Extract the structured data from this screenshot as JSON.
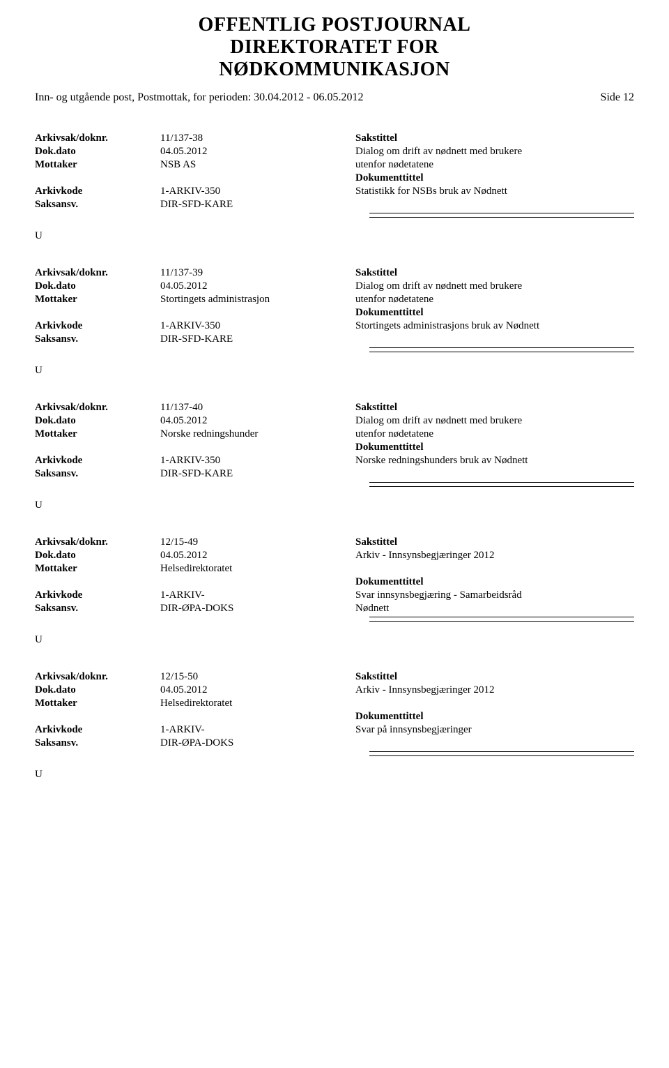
{
  "header": {
    "line1": "OFFENTLIG POSTJOURNAL",
    "line2": "DIREKTORATET FOR",
    "line3": "NØDKOMMUNIKASJON"
  },
  "subheader": {
    "text": "Inn- og utgående post, Postmottak, for perioden: 30.04.2012 - 06.05.2012",
    "page": "Side 12"
  },
  "labels": {
    "arkivsak": "Arkivsak/doknr.",
    "dokdato": "Dok.dato",
    "mottaker": "Mottaker",
    "arkivkode": "Arkivkode",
    "saksansv": "Saksansv.",
    "sakstittel": "Sakstittel",
    "dokumenttittel": "Dokumenttittel"
  },
  "entries": [
    {
      "arkivsak": "11/137-38",
      "dokdato": "04.05.2012",
      "mottaker": "NSB AS",
      "arkivkode": "1-ARKIV-350",
      "saksansv": "DIR-SFD-KARE",
      "sakstittel_lines": [
        "Dialog om drift av nødnett med brukere",
        "utenfor nødetatene"
      ],
      "dokumenttittel_lines": [
        "Statistikk for NSBs bruk av Nødnett"
      ],
      "type": "U"
    },
    {
      "arkivsak": "11/137-39",
      "dokdato": "04.05.2012",
      "mottaker": "Stortingets administrasjon",
      "arkivkode": "1-ARKIV-350",
      "saksansv": "DIR-SFD-KARE",
      "sakstittel_lines": [
        "Dialog om drift av nødnett med brukere",
        "utenfor nødetatene"
      ],
      "dokumenttittel_lines": [
        "Stortingets administrasjons bruk av Nødnett"
      ],
      "type": "U"
    },
    {
      "arkivsak": "11/137-40",
      "dokdato": "04.05.2012",
      "mottaker": "Norske redningshunder",
      "arkivkode": "1-ARKIV-350",
      "saksansv": "DIR-SFD-KARE",
      "sakstittel_lines": [
        "Dialog om drift av nødnett med brukere",
        "utenfor nødetatene"
      ],
      "dokumenttittel_lines": [
        "Norske redningshunders bruk av Nødnett"
      ],
      "type": "U"
    },
    {
      "arkivsak": "12/15-49",
      "dokdato": "04.05.2012",
      "mottaker": "Helsedirektoratet",
      "arkivkode": "1-ARKIV-",
      "saksansv": "DIR-ØPA-DOKS",
      "sakstittel_lines": [
        "Arkiv - Innsynsbegjæringer 2012"
      ],
      "dokumenttittel_lines": [
        "Svar innsynsbegjæring - Samarbeidsråd",
        "Nødnett"
      ],
      "type": "U"
    },
    {
      "arkivsak": "12/15-50",
      "dokdato": "04.05.2012",
      "mottaker": "Helsedirektoratet",
      "arkivkode": "1-ARKIV-",
      "saksansv": "DIR-ØPA-DOKS",
      "sakstittel_lines": [
        "Arkiv - Innsynsbegjæringer 2012"
      ],
      "dokumenttittel_lines": [
        "Svar på innsynsbegjæringer"
      ],
      "type": "U"
    }
  ]
}
